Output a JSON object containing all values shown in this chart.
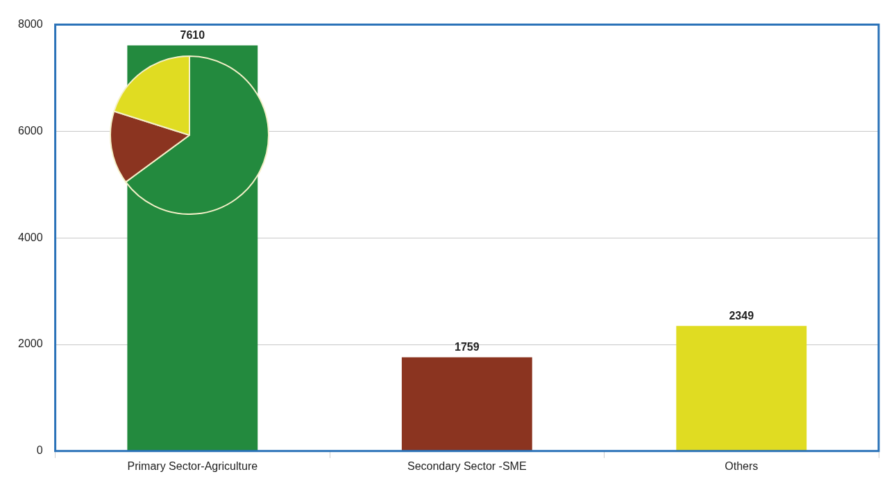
{
  "chart_data": [
    {
      "type": "bar",
      "categories": [
        "Primary Sector-Agriculture",
        "Secondary Sector -SME",
        "Others"
      ],
      "values": [
        7610,
        1759,
        2349
      ],
      "colors": [
        "#238a3e",
        "#8b3420",
        "#e0dc22"
      ],
      "ylim": [
        0,
        8000
      ],
      "yticks": [
        0,
        2000,
        4000,
        6000,
        8000
      ],
      "grid": "y",
      "data_labels": true,
      "legend": false
    },
    {
      "type": "pie",
      "categories": [
        null,
        null,
        null
      ],
      "values": [
        64.9,
        15.0,
        20.1
      ],
      "colors": [
        "#238a3e",
        "#8b3420",
        "#e0dc22"
      ],
      "legend": false
    }
  ]
}
